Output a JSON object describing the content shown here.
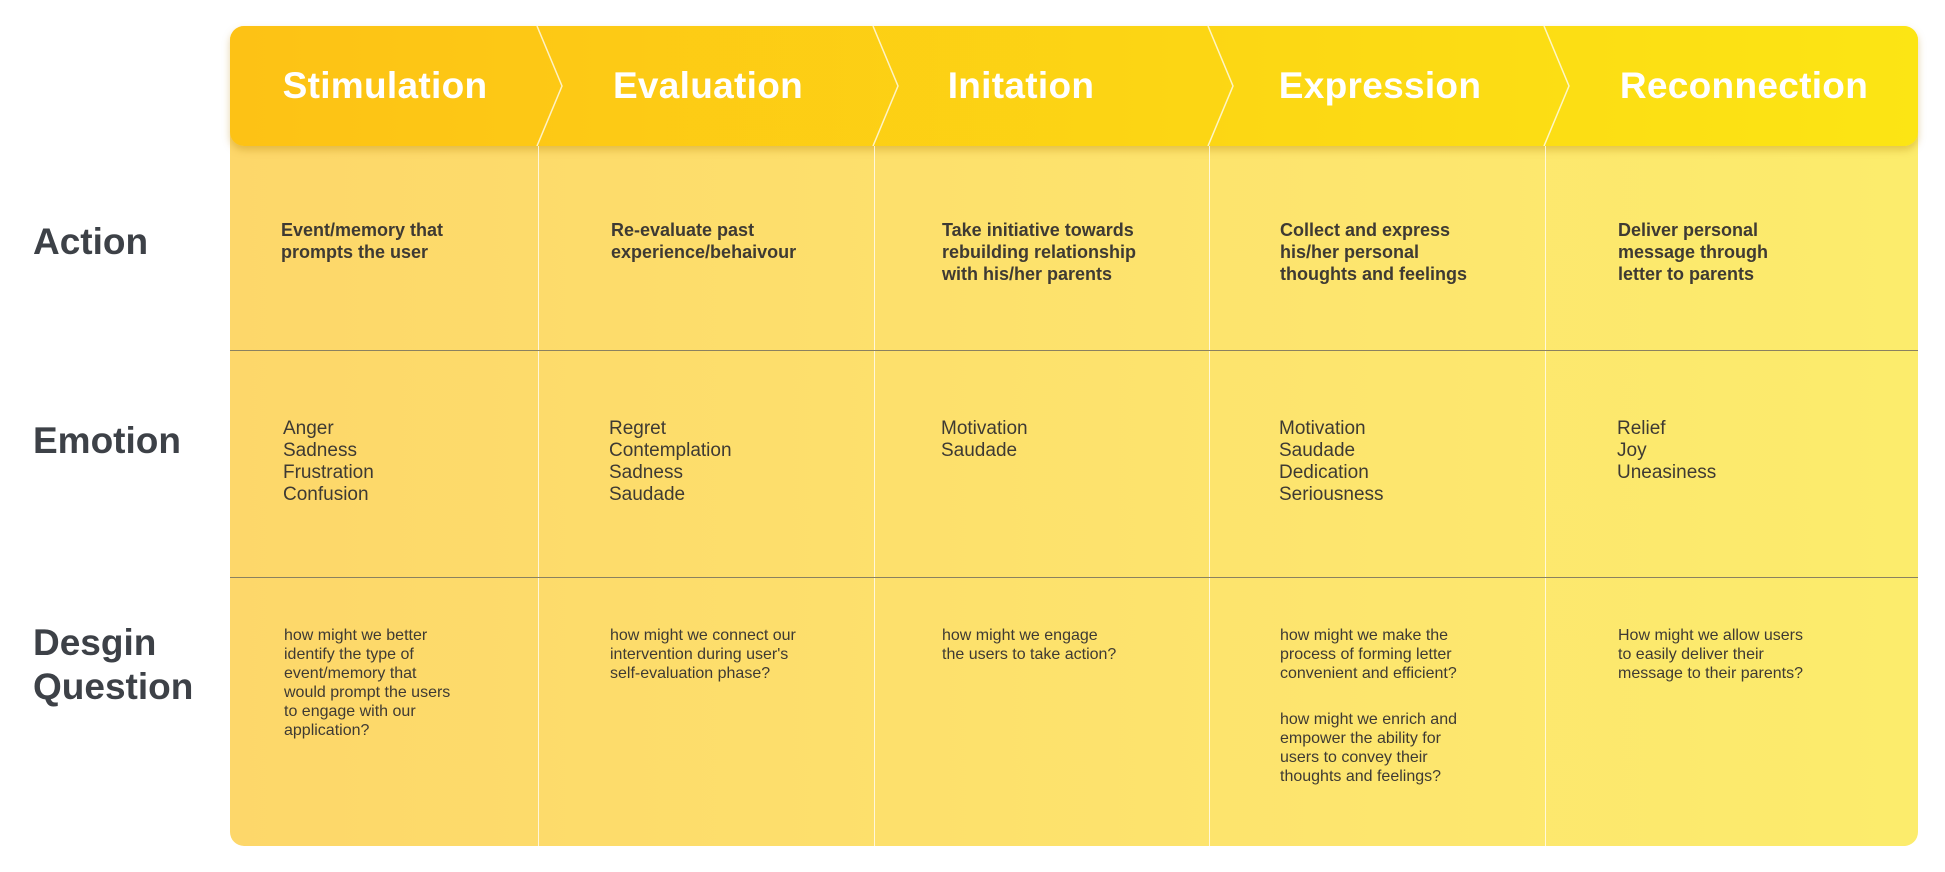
{
  "stages": [
    "Stimulation",
    "Evaluation",
    "Initation",
    "Expression",
    "Reconnection"
  ],
  "rows": {
    "action_label": "Action",
    "emotion_label": "Emotion",
    "question_label": [
      "Desgin",
      "Question"
    ]
  },
  "actions": [
    [
      "Event/memory that",
      "prompts the user"
    ],
    [
      "Re-evaluate past",
      "experience/behaivour"
    ],
    [
      "Take initiative towards",
      "rebuilding relationship",
      "with his/her parents"
    ],
    [
      "Collect and express",
      "his/her personal",
      "thoughts and feelings"
    ],
    [
      "Deliver personal",
      "message through",
      "letter to parents"
    ]
  ],
  "emotions": [
    [
      "Anger",
      "Sadness",
      "Frustration",
      "Confusion"
    ],
    [
      "Regret",
      "Contemplation",
      "Sadness",
      "Saudade"
    ],
    [
      "Motivation",
      "Saudade"
    ],
    [
      "Motivation",
      "Saudade",
      "Dedication",
      "Seriousness"
    ],
    [
      "Relief",
      "Joy",
      "Uneasiness"
    ]
  ],
  "questions": [
    [
      [
        "how might we better",
        "identify the type of",
        "event/memory that",
        "would prompt the users",
        "to engage with our",
        "application?"
      ]
    ],
    [
      [
        "how might we connect our",
        "intervention during user's",
        "self-evaluation phase?"
      ]
    ],
    [
      [
        "how might we engage",
        "the users to take action?"
      ]
    ],
    [
      [
        "how might we make the",
        "process of forming letter",
        "convenient and efficient?"
      ],
      [
        "how might we enrich and",
        "empower the ability for",
        "users to convey their",
        "thoughts and feelings?"
      ]
    ],
    [
      [
        "How might we allow users",
        "to easily deliver their",
        "message to their parents?"
      ]
    ]
  ],
  "colors": {
    "header_start": "#fdc215",
    "header_end": "#fce514",
    "body_start": "#fdd76a",
    "body_end": "#fcec6c",
    "label_text": "#3d4147"
  }
}
